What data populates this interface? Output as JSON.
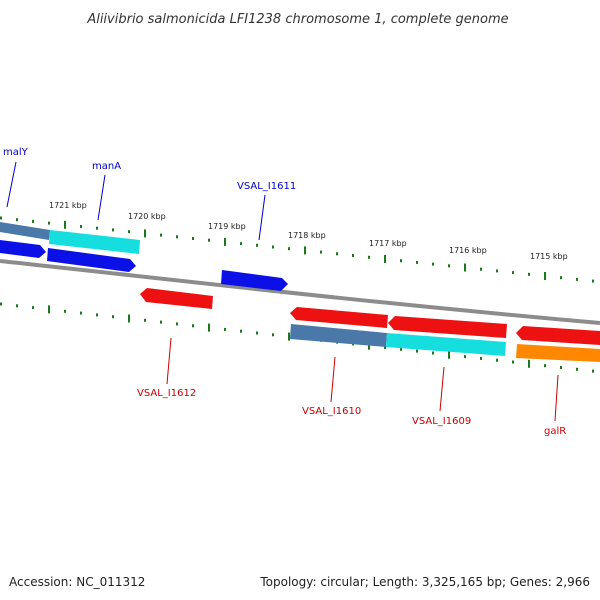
{
  "title": "Aliivibrio salmonicida LFI1238 chromosome 1, complete genome",
  "footer": {
    "accession": "Accession: NC_011312",
    "summary": "Topology: circular; Length: 3,325,165 bp; Genes: 2,966"
  },
  "colors": {
    "forward_label": "#0000cc",
    "reverse_label": "#cc0000",
    "tick_mark": "#1a7a1a",
    "backbone": "#8c8c8c",
    "blue": "#0a10e6",
    "steel_blue": "#4a78a8",
    "cyan": "#16dede",
    "red": "#ee1111",
    "orange": "#ff8800"
  },
  "tick_labels": [
    "1721 kbp",
    "1720 kbp",
    "1719 kbp",
    "1718 kbp",
    "1717 kbp",
    "1716 kbp",
    "1715 kbp"
  ],
  "genes": {
    "forward": [
      "malY",
      "manA",
      "VSAL_I1611"
    ],
    "reverse": [
      "VSAL_I1612",
      "VSAL_I1610",
      "VSAL_I1609",
      "galR"
    ]
  }
}
